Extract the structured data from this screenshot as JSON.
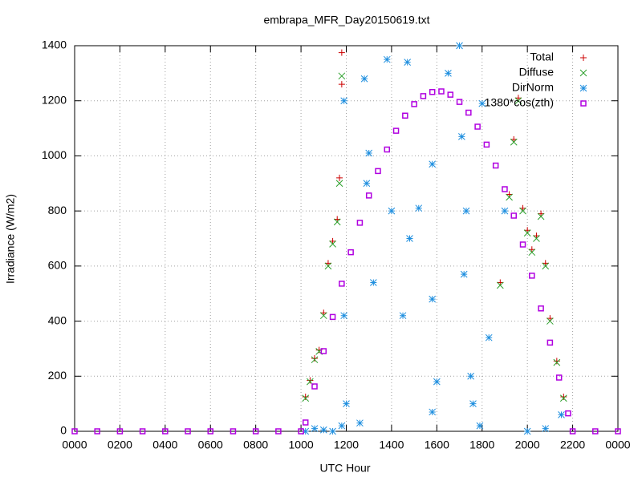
{
  "chart_data": {
    "type": "scatter",
    "title": "embrapa_MFR_Day20150619.txt",
    "xlabel": "UTC Hour",
    "ylabel": "Irradiance (W/m2)",
    "xlim": [
      0,
      24
    ],
    "ylim": [
      0,
      1400
    ],
    "xticks": [
      {
        "value": 0,
        "label": "0000"
      },
      {
        "value": 2,
        "label": "0200"
      },
      {
        "value": 4,
        "label": "0400"
      },
      {
        "value": 6,
        "label": "0600"
      },
      {
        "value": 8,
        "label": "0800"
      },
      {
        "value": 10,
        "label": "1000"
      },
      {
        "value": 12,
        "label": "1200"
      },
      {
        "value": 14,
        "label": "1400"
      },
      {
        "value": 16,
        "label": "1600"
      },
      {
        "value": 18,
        "label": "1800"
      },
      {
        "value": 20,
        "label": "2000"
      },
      {
        "value": 22,
        "label": "2200"
      },
      {
        "value": 24,
        "label": "0000"
      }
    ],
    "yticks": [
      0,
      200,
      400,
      600,
      800,
      1000,
      1200,
      1400
    ],
    "grid": true,
    "legend": "top-right",
    "series": [
      {
        "name": "Total",
        "color": "#cc0000",
        "marker": "plus",
        "x": [
          10.2,
          10.4,
          10.6,
          10.8,
          11.0,
          11.2,
          11.4,
          11.6,
          11.7,
          11.8,
          11.8,
          18.8,
          19.2,
          19.4,
          19.6,
          19.8,
          20.0,
          20.2,
          20.4,
          20.6,
          20.8,
          21.0,
          21.3,
          21.6
        ],
        "values": [
          125,
          185,
          265,
          295,
          430,
          610,
          690,
          770,
          920,
          1260,
          1375,
          540,
          860,
          1060,
          1210,
          810,
          730,
          660,
          710,
          790,
          610,
          410,
          255,
          125
        ]
      },
      {
        "name": "Diffuse",
        "color": "#2ca02c",
        "marker": "cross",
        "x": [
          10.2,
          10.4,
          10.6,
          10.8,
          11.0,
          11.2,
          11.4,
          11.6,
          11.7,
          11.8,
          18.8,
          19.2,
          19.4,
          19.6,
          19.8,
          20.0,
          20.2,
          20.4,
          20.6,
          20.8,
          21.0,
          21.3,
          21.6
        ],
        "values": [
          120,
          180,
          260,
          290,
          420,
          600,
          680,
          760,
          900,
          1290,
          530,
          850,
          1050,
          1200,
          800,
          720,
          650,
          700,
          780,
          600,
          400,
          250,
          120
        ]
      },
      {
        "name": "DirNorm",
        "color": "#1f8fdf",
        "marker": "star",
        "x": [
          10.2,
          10.6,
          11.0,
          11.4,
          11.8,
          11.9,
          11.9,
          12.0,
          12.6,
          12.8,
          12.9,
          13.0,
          13.2,
          13.8,
          14.0,
          14.5,
          14.7,
          14.8,
          15.2,
          15.8,
          15.8,
          15.8,
          16.0,
          16.5,
          17.0,
          17.1,
          17.2,
          17.3,
          17.5,
          17.6,
          17.9,
          18.0,
          18.3,
          19.0,
          20.0,
          20.8,
          21.5
        ],
        "values": [
          0,
          10,
          5,
          0,
          20,
          1200,
          420,
          100,
          30,
          1280,
          900,
          1010,
          540,
          1350,
          800,
          420,
          1340,
          700,
          810,
          970,
          480,
          70,
          180,
          1300,
          1400,
          1070,
          570,
          800,
          200,
          100,
          20,
          1190,
          340,
          800,
          0,
          10,
          60
        ]
      },
      {
        "name": "1380*cos(zth)",
        "color": "#b000e0",
        "marker": "square",
        "x": [
          0,
          1,
          2,
          3,
          4,
          5,
          6,
          7,
          8,
          9,
          10,
          10.2,
          10.6,
          11.0,
          11.4,
          11.8,
          12.2,
          12.6,
          13.0,
          13.4,
          13.8,
          14.2,
          14.6,
          15.0,
          15.4,
          15.8,
          16.2,
          16.6,
          17.0,
          17.4,
          17.8,
          18.2,
          18.6,
          19.0,
          19.4,
          19.8,
          20.2,
          20.6,
          21.0,
          21.4,
          21.8,
          22,
          23,
          24
        ],
        "values": [
          0,
          0,
          0,
          0,
          0,
          0,
          0,
          0,
          0,
          0,
          0,
          32,
          163,
          291,
          415,
          536,
          650,
          757,
          856,
          945,
          1023,
          1091,
          1146,
          1188,
          1217,
          1232,
          1234,
          1222,
          1196,
          1157,
          1106,
          1041,
          965,
          879,
          783,
          678,
          565,
          446,
          322,
          195,
          65,
          0,
          0,
          0
        ]
      }
    ]
  }
}
